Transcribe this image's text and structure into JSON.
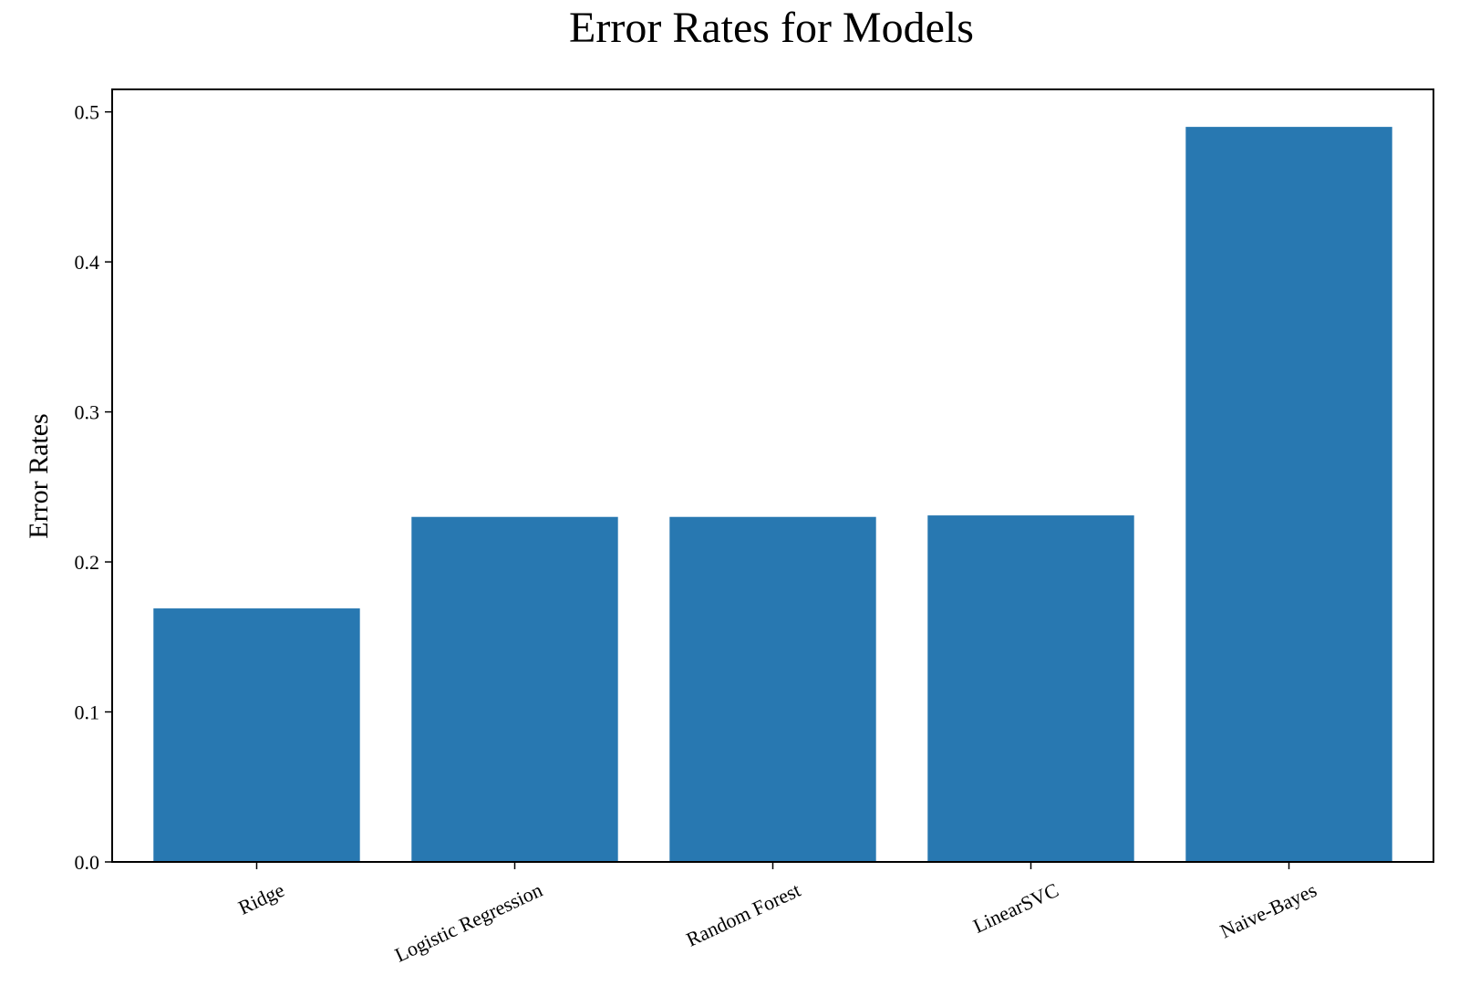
{
  "chart_data": {
    "type": "bar",
    "title": "Error Rates for Models",
    "xlabel": "",
    "ylabel": "Error Rates",
    "categories": [
      "Ridge",
      "Logistic Regression",
      "Random Forest",
      "LinearSVC",
      "Naive-Bayes"
    ],
    "values": [
      0.169,
      0.23,
      0.23,
      0.231,
      0.49
    ],
    "ylim": [
      0.0,
      0.515
    ],
    "yticks": [
      "0.0",
      "0.1",
      "0.2",
      "0.3",
      "0.4",
      "0.5"
    ],
    "grid": false,
    "bar_color": "#2878b1"
  }
}
